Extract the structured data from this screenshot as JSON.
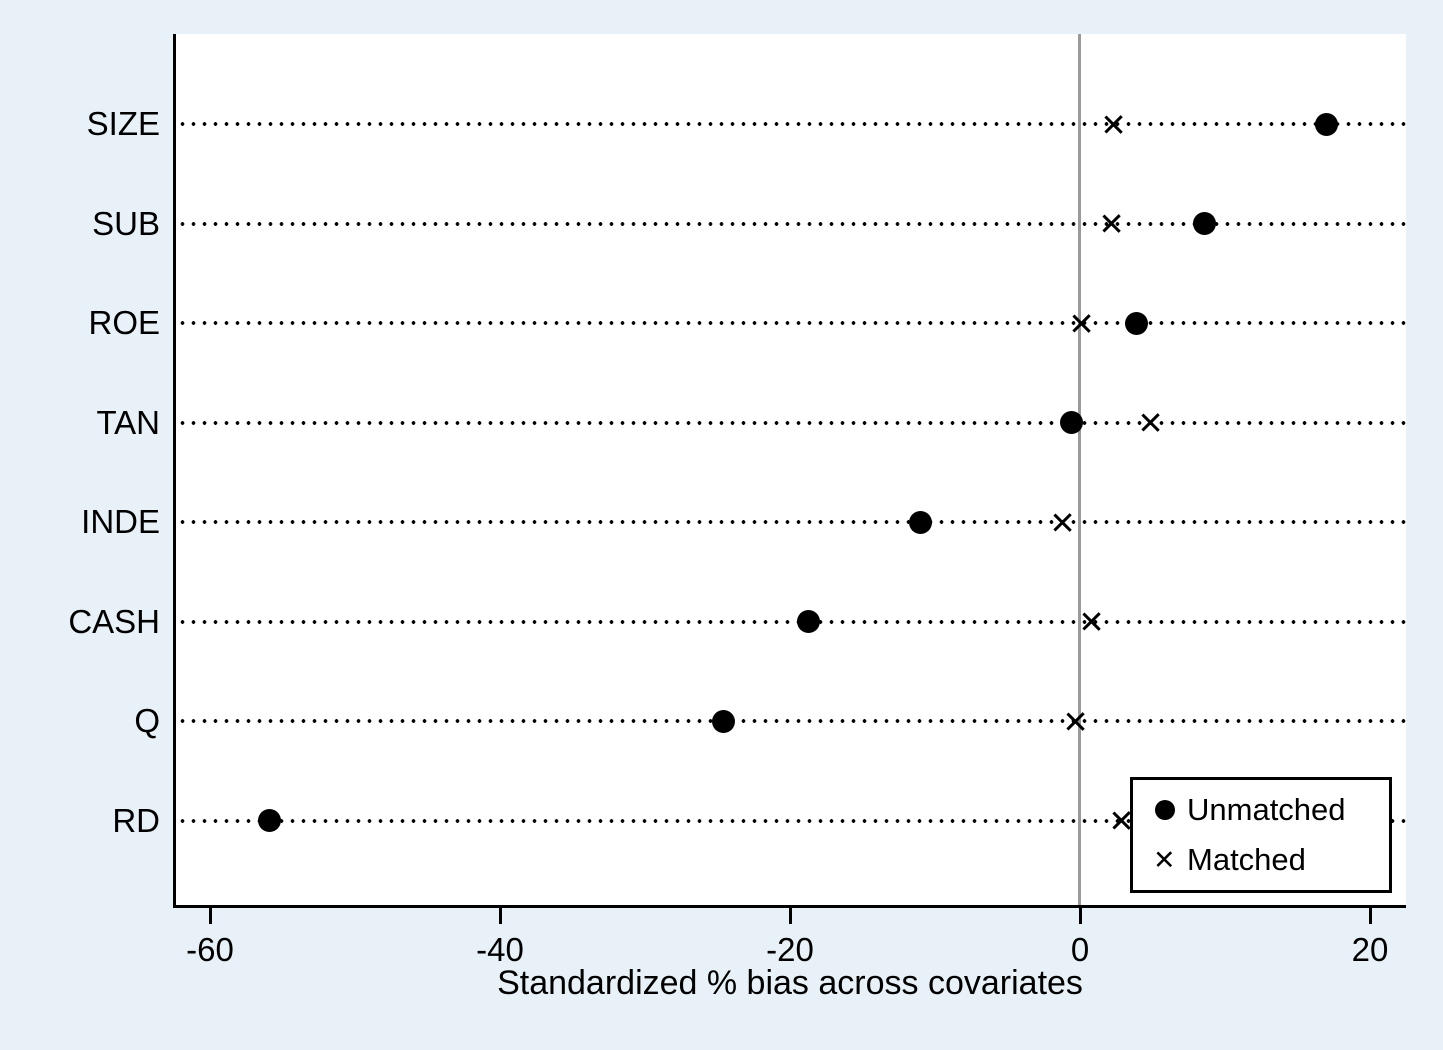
{
  "figure": {
    "background_color": "#e8f1f7",
    "plot_background_color": "#ffffff",
    "axis_color": "#000000",
    "zero_line_color": "#9a9a9a",
    "marker_color": "#000000"
  },
  "chart_data": {
    "type": "scatter",
    "title": "",
    "xlabel": "Standardized % bias across covariates",
    "ylabel": "",
    "xlim": [
      -62.5,
      22.5
    ],
    "x_ticks": [
      -60,
      -40,
      -20,
      0,
      20
    ],
    "zero_reference_line": 0,
    "grid": "dotted horizontal line per category",
    "legend_position": "bottom-right inside plot",
    "categories": [
      "SIZE",
      "SUB",
      "ROE",
      "TAN",
      "INDE",
      "CASH",
      "Q",
      "RD"
    ],
    "series": [
      {
        "name": "Unmatched",
        "marker": "circle",
        "values": [
          17.0,
          8.6,
          3.9,
          -0.6,
          -11.0,
          -18.7,
          -24.6,
          -55.9
        ]
      },
      {
        "name": "Matched",
        "marker": "x",
        "values": [
          2.3,
          2.2,
          0.1,
          4.9,
          -1.2,
          0.8,
          -0.3,
          2.9
        ]
      }
    ]
  }
}
